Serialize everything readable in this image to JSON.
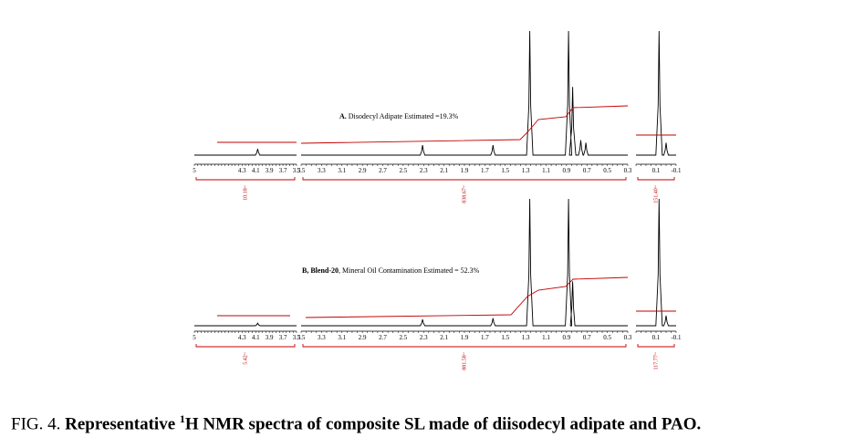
{
  "chart_data": [
    {
      "type": "line",
      "panel": "A",
      "annotation_label": "A.",
      "annotation_text": "Disodecyl Adipate Estimated =19.3%",
      "x_ticks": [
        "5",
        "4.3",
        "4.1",
        "3.9",
        "3.7",
        "3.5",
        "3.5",
        "3.3",
        "3.1",
        "2.9",
        "2.7",
        "2.5",
        "2.3",
        "2.1",
        "1.9",
        "1.7",
        "1.5",
        "1.3",
        "1.1",
        "0.9",
        "0.7",
        "0.5",
        "0.3",
        "0.1",
        "-0.1"
      ],
      "integrals": [
        "10.18",
        "838.67",
        "151.40"
      ],
      "peaks": [
        {
          "ppm": 4.07,
          "height": 0.05
        },
        {
          "ppm": 2.31,
          "height": 0.08
        },
        {
          "ppm": 1.62,
          "height": 0.08
        },
        {
          "ppm": 1.26,
          "height": 1.0
        },
        {
          "ppm": 0.88,
          "height": 1.0
        },
        {
          "ppm": 0.84,
          "height": 0.55
        },
        {
          "ppm": 0.76,
          "height": 0.12
        },
        {
          "ppm": 0.71,
          "height": 0.1
        },
        {
          "ppm": 0.07,
          "height": 1.0
        },
        {
          "ppm": 0.0,
          "height": 0.1
        }
      ]
    },
    {
      "type": "line",
      "panel": "B",
      "annotation_label": "B, Blend-20",
      "annotation_text": ", Mineral Oil Contamination Estimated = 52.3%",
      "x_ticks": [
        "5",
        "4.3",
        "4.1",
        "3.9",
        "3.7",
        "3.5",
        "3.5",
        "3.3",
        "3.1",
        "2.9",
        "2.7",
        "2.5",
        "2.3",
        "2.1",
        "1.9",
        "1.7",
        "1.5",
        "1.3",
        "1.1",
        "0.9",
        "0.7",
        "0.5",
        "0.3",
        "0.1",
        "-0.1"
      ],
      "integrals": [
        "5.42",
        "881.58",
        "117.77"
      ],
      "peaks": [
        {
          "ppm": 4.07,
          "height": 0.02
        },
        {
          "ppm": 2.31,
          "height": 0.05
        },
        {
          "ppm": 1.62,
          "height": 0.06
        },
        {
          "ppm": 1.26,
          "height": 1.0
        },
        {
          "ppm": 0.88,
          "height": 1.0
        },
        {
          "ppm": 0.84,
          "height": 0.35
        },
        {
          "ppm": 0.07,
          "height": 1.0
        },
        {
          "ppm": 0.0,
          "height": 0.08
        }
      ]
    }
  ],
  "caption": {
    "prefix": "FIG. 4. ",
    "bold_part1": "Representative ",
    "superscript": "1",
    "bold_part2": "H NMR spectra of composite SL made of diisodecyl adipate and PAO."
  },
  "colors": {
    "spectrum": "#000000",
    "integral": "#c00000"
  }
}
